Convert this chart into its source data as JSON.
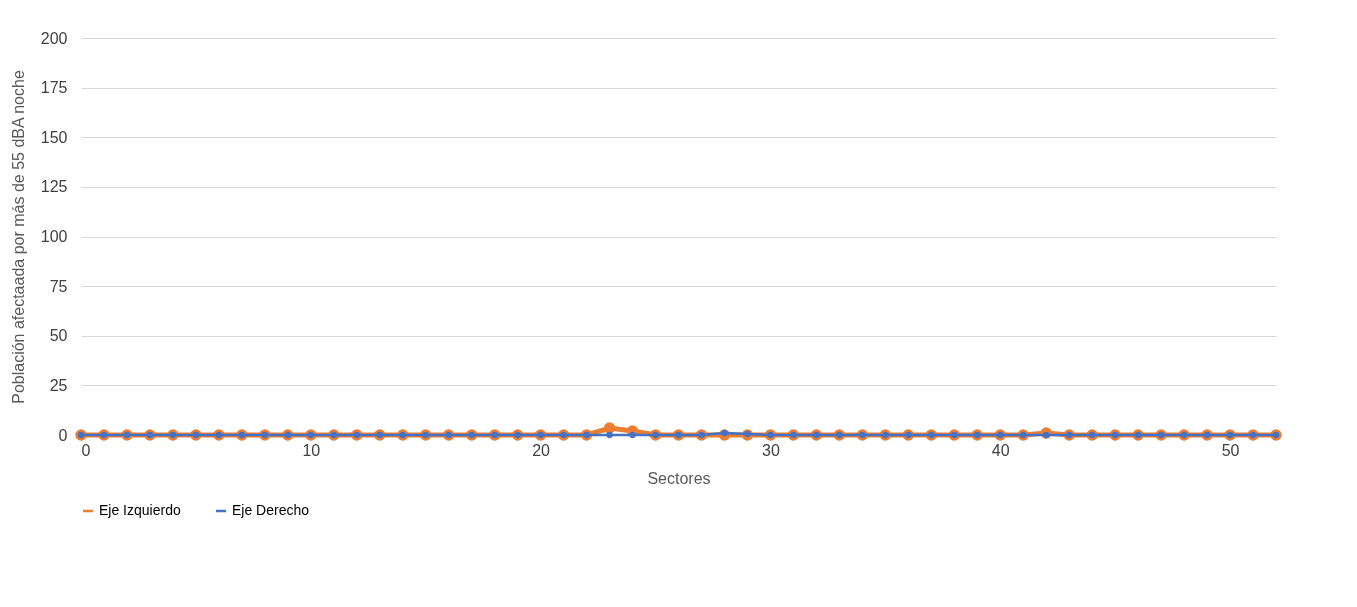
{
  "chart_data": {
    "type": "line",
    "xlabel": "Sectores",
    "ylabel": "Población afectaada por más de 55 dBA noche",
    "x": [
      0,
      1,
      2,
      3,
      4,
      5,
      6,
      7,
      8,
      9,
      10,
      11,
      12,
      13,
      14,
      15,
      16,
      17,
      18,
      19,
      20,
      21,
      22,
      23,
      24,
      25,
      26,
      27,
      28,
      29,
      30,
      31,
      32,
      33,
      34,
      35,
      36,
      37,
      38,
      39,
      40,
      41,
      42,
      43,
      44,
      45,
      46,
      47,
      48,
      49,
      50,
      51,
      52
    ],
    "series": [
      {
        "name": "Eje Izquierdo",
        "color": "#ed7d31",
        "values": [
          0,
          0,
          0,
          0,
          0,
          0,
          0,
          0,
          0,
          0,
          0,
          0,
          0,
          0,
          0,
          0,
          0,
          0,
          0,
          0,
          0,
          0,
          0,
          3.5,
          2,
          0,
          0,
          0,
          0,
          0,
          0,
          0,
          0,
          0,
          0,
          0,
          0,
          0,
          0,
          0,
          0,
          0,
          1,
          0,
          0,
          0,
          0,
          0,
          0,
          0,
          0,
          0,
          0
        ]
      },
      {
        "name": "Eje Derecho",
        "color": "#4472c4",
        "values": [
          0,
          0,
          0,
          0,
          0,
          0,
          0,
          0,
          0,
          0,
          0,
          0,
          0,
          0,
          0,
          0,
          0,
          0,
          0,
          0,
          0,
          0,
          0,
          0,
          0,
          0,
          0,
          0,
          1,
          0.5,
          0,
          0,
          0,
          0,
          0,
          0,
          0,
          0,
          0,
          0,
          0,
          0,
          0,
          0,
          0,
          0,
          0,
          0,
          0,
          0,
          0,
          0,
          0
        ]
      }
    ],
    "xlim": [
      0,
      52
    ],
    "xticks": [
      0,
      10,
      20,
      30,
      40,
      50
    ],
    "ylim": [
      0,
      200
    ],
    "yticks": [
      0,
      25,
      50,
      75,
      100,
      125,
      150,
      175,
      200
    ],
    "grid": "y",
    "legend": "bottom",
    "marker": "circle",
    "line_style": "solid"
  }
}
